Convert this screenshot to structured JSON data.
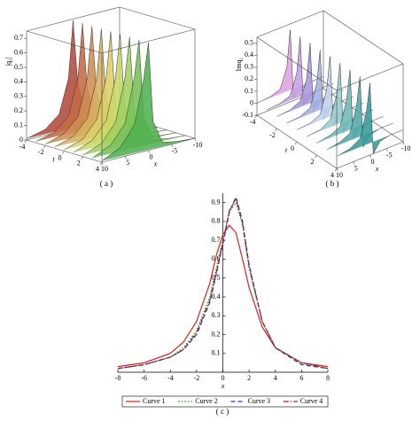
{
  "chart_data": [
    {
      "type": "surface",
      "caption": "( a )",
      "zlabel": "|q₁|",
      "tlabel": "t",
      "xlabel": "x",
      "tlim": [
        -4,
        4
      ],
      "xlim": [
        10,
        -10
      ],
      "zlim": [
        0,
        0.75
      ],
      "tticks": [
        -4,
        -2,
        0,
        2,
        4
      ],
      "xticks": [
        10,
        5,
        0,
        -5,
        -10
      ],
      "zticks": [
        0,
        0.1,
        0.2,
        0.3,
        0.4,
        0.5,
        0.6,
        0.7
      ],
      "t": [
        -4,
        -3,
        -2,
        -1,
        0,
        1,
        2,
        3,
        4
      ],
      "x": [
        10,
        6,
        3,
        1,
        0,
        -1,
        -3,
        -6,
        -10
      ],
      "z": [
        [
          0.01,
          0.04,
          0.12,
          0.35,
          0.74,
          0.3,
          0.05,
          0.01,
          0
        ],
        [
          0.01,
          0.04,
          0.13,
          0.37,
          0.74,
          0.28,
          0.05,
          0.01,
          0
        ],
        [
          0.01,
          0.05,
          0.14,
          0.39,
          0.74,
          0.27,
          0.04,
          0.01,
          0
        ],
        [
          0.01,
          0.05,
          0.15,
          0.41,
          0.74,
          0.25,
          0.04,
          0.01,
          0
        ],
        [
          0.01,
          0.05,
          0.16,
          0.43,
          0.74,
          0.24,
          0.04,
          0.01,
          0
        ],
        [
          0.01,
          0.06,
          0.17,
          0.45,
          0.74,
          0.22,
          0.03,
          0.01,
          0
        ],
        [
          0.01,
          0.06,
          0.18,
          0.47,
          0.74,
          0.21,
          0.03,
          0.01,
          0
        ],
        [
          0.01,
          0.07,
          0.19,
          0.49,
          0.74,
          0.2,
          0.03,
          0.01,
          0
        ],
        [
          0.01,
          0.07,
          0.2,
          0.5,
          0.74,
          0.19,
          0.03,
          0.01,
          0
        ]
      ],
      "colors": [
        "#b24a3c",
        "#c46a44",
        "#d08c50",
        "#d8b060",
        "#dccf68",
        "#c8d868",
        "#a0d060",
        "#78c058",
        "#50b050"
      ]
    },
    {
      "type": "surface",
      "caption": "( b )",
      "zlabel": "Imq₁",
      "tlabel": "t",
      "xlabel": "x",
      "tlim": [
        -4,
        4
      ],
      "xlim": [
        10,
        -10
      ],
      "zlim": [
        -0.1,
        0.55
      ],
      "tticks": [
        -4,
        -2,
        0,
        2,
        4
      ],
      "xticks": [
        10,
        5,
        0,
        -5,
        -10
      ],
      "zticks": [
        -0.1,
        0,
        0.1,
        0.2,
        0.3,
        0.4,
        0.5
      ],
      "t": [
        -4,
        -3,
        -2,
        -1,
        0,
        1,
        2,
        3,
        4
      ],
      "x": [
        10,
        6,
        3,
        1,
        0,
        -1,
        -3,
        -6,
        -10
      ],
      "z": [
        [
          0,
          0.01,
          0.04,
          0.2,
          0.5,
          -0.08,
          -0.03,
          0,
          0
        ],
        [
          0,
          0.01,
          0.04,
          0.21,
          0.5,
          -0.08,
          -0.03,
          0,
          0
        ],
        [
          0,
          0.01,
          0.05,
          0.22,
          0.5,
          -0.08,
          -0.03,
          0,
          0
        ],
        [
          0,
          0.01,
          0.05,
          0.23,
          0.5,
          -0.09,
          -0.03,
          0,
          0
        ],
        [
          0,
          0.01,
          0.05,
          0.24,
          0.5,
          -0.09,
          -0.03,
          0,
          0
        ],
        [
          0,
          0.01,
          0.06,
          0.25,
          0.5,
          -0.09,
          -0.02,
          0,
          0
        ],
        [
          0,
          0.02,
          0.06,
          0.26,
          0.5,
          -0.09,
          -0.02,
          0,
          0
        ],
        [
          0,
          0.02,
          0.06,
          0.27,
          0.5,
          -0.1,
          -0.02,
          0,
          0
        ],
        [
          0,
          0.02,
          0.07,
          0.28,
          0.5,
          -0.1,
          -0.02,
          0,
          0
        ]
      ],
      "colors": [
        "#e0a0e0",
        "#c4a0e4",
        "#a898dc",
        "#a0b0e4",
        "#c0d0ec",
        "#98cccc",
        "#70b8b8",
        "#50a8a8",
        "#389898"
      ]
    },
    {
      "type": "line",
      "caption": "( c )",
      "xlabel": "x",
      "xlim": [
        -8,
        8
      ],
      "ylim": [
        0,
        0.95
      ],
      "xticks": [
        -8,
        -6,
        -4,
        -2,
        0,
        2,
        4,
        6,
        8
      ],
      "yticks": [
        0.1,
        0.2,
        0.3,
        0.4,
        0.5,
        0.6,
        0.7,
        0.8,
        0.9
      ],
      "legend": "bottom",
      "x": [
        -8,
        -6,
        -4,
        -3,
        -2,
        -1,
        -0.5,
        0,
        0.5,
        1,
        1.5,
        2,
        3,
        4,
        6,
        8
      ],
      "series": [
        {
          "name": "Curve 1",
          "color": "#e02020",
          "line_style": "solid",
          "values": [
            0.03,
            0.05,
            0.1,
            0.16,
            0.27,
            0.47,
            0.62,
            0.73,
            0.78,
            0.74,
            0.6,
            0.45,
            0.24,
            0.13,
            0.05,
            0.03
          ]
        },
        {
          "name": "Curve 2",
          "color": "#10a010",
          "line_style": "dot",
          "values": [
            0.02,
            0.04,
            0.08,
            0.13,
            0.22,
            0.4,
            0.55,
            0.7,
            0.85,
            0.9,
            0.78,
            0.55,
            0.27,
            0.13,
            0.05,
            0.02
          ]
        },
        {
          "name": "Curve 3",
          "color": "#2030d0",
          "line_style": "dash",
          "values": [
            0.02,
            0.04,
            0.08,
            0.12,
            0.2,
            0.37,
            0.52,
            0.68,
            0.85,
            0.93,
            0.8,
            0.57,
            0.27,
            0.13,
            0.04,
            0.02
          ]
        },
        {
          "name": "Curve 4",
          "color": "#a02020",
          "line_style": "dashdot",
          "values": [
            0.02,
            0.04,
            0.08,
            0.12,
            0.21,
            0.38,
            0.53,
            0.69,
            0.86,
            0.92,
            0.79,
            0.56,
            0.27,
            0.13,
            0.05,
            0.02
          ]
        }
      ]
    }
  ]
}
